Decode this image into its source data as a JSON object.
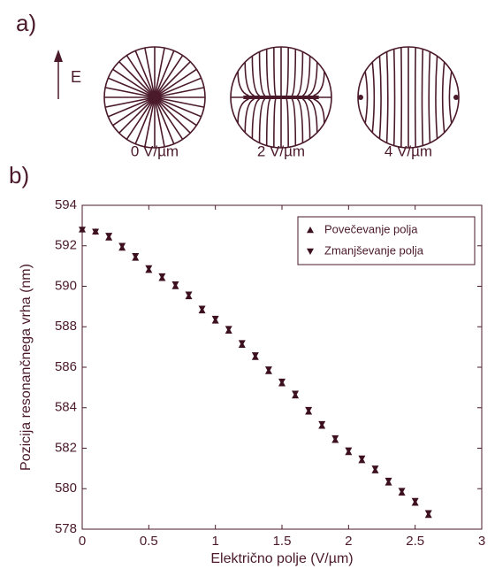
{
  "panel_a": {
    "label": "a)",
    "field": "E",
    "captions": [
      "0 V/µm",
      "2 V/µm",
      "4 V/µm"
    ]
  },
  "chart_data": {
    "type": "scatter",
    "panel_label": "b)",
    "x_label": "Električno polje (V/µm)",
    "y_label": "Pozicija resonančnega vrha (nm)",
    "x": [
      0,
      0.1,
      0.2,
      0.3,
      0.4,
      0.5,
      0.6,
      0.7,
      0.8,
      0.9,
      1.0,
      1.1,
      1.2,
      1.3,
      1.4,
      1.5,
      1.6,
      1.7,
      1.8,
      1.9,
      2.0,
      2.1,
      2.2,
      2.3,
      2.4,
      2.5,
      2.6
    ],
    "series": [
      {
        "name": "Povečevanje polja",
        "color": "#3d1020",
        "marker": "triangle-up",
        "values": [
          592.8,
          592.7,
          592.4,
          591.9,
          591.4,
          590.8,
          590.4,
          590.0,
          589.5,
          588.8,
          588.3,
          587.8,
          587.1,
          586.5,
          585.8,
          585.2,
          584.6,
          583.8,
          583.1,
          582.4,
          581.8,
          581.4,
          580.9,
          580.3,
          579.8,
          579.3,
          578.7
        ]
      },
      {
        "name": "Zmanjševanje polja",
        "color": "#3d1020",
        "marker": "triangle-down",
        "values": [
          592.8,
          592.7,
          592.5,
          592.0,
          591.5,
          590.9,
          590.5,
          590.1,
          589.6,
          588.9,
          588.4,
          587.9,
          587.2,
          586.6,
          585.9,
          585.3,
          584.7,
          583.9,
          583.2,
          582.5,
          581.9,
          581.5,
          581.0,
          580.4,
          579.9,
          579.4,
          578.8
        ]
      }
    ],
    "xlim": [
      0,
      3
    ],
    "xticks": [
      0,
      0.5,
      1,
      1.5,
      2,
      2.5,
      3
    ],
    "ylim": [
      578,
      594
    ],
    "yticks": [
      578,
      580,
      582,
      584,
      586,
      588,
      590,
      592,
      594
    ],
    "legend": "upper right"
  }
}
